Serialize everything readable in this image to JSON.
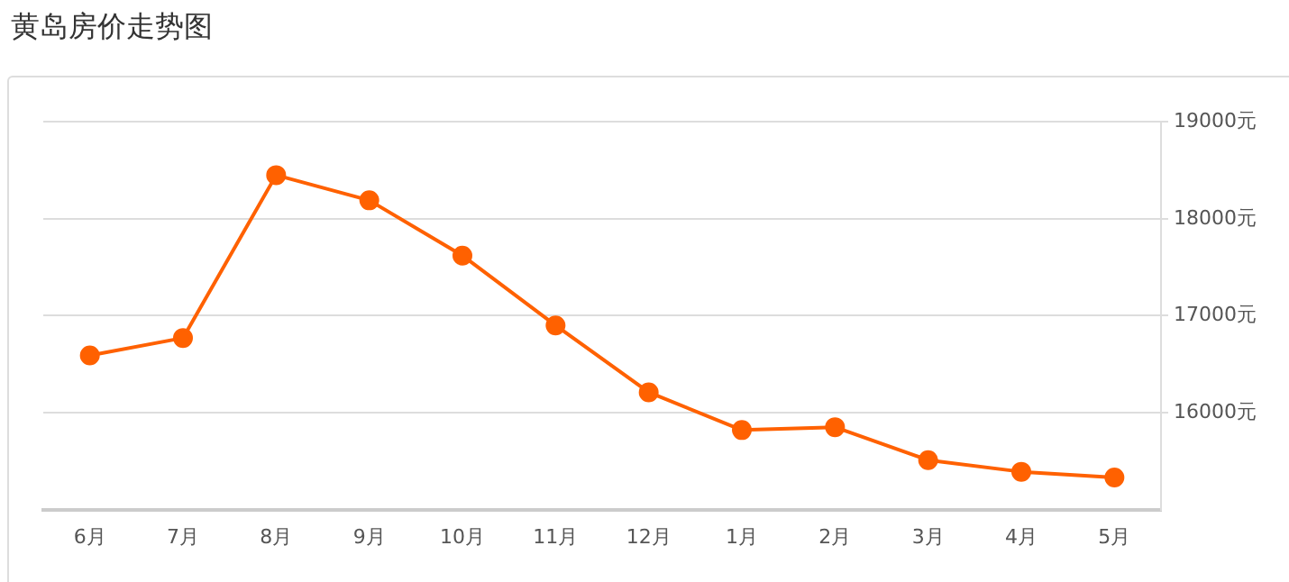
{
  "chart_data": {
    "type": "line",
    "title": "黄岛房价走势图",
    "categories": [
      "6月",
      "7月",
      "8月",
      "9月",
      "10月",
      "11月",
      "12月",
      "1月",
      "2月",
      "3月",
      "4月",
      "5月"
    ],
    "series": [
      {
        "color": "#ff6100",
        "values": [
          16590,
          16770,
          18450,
          18190,
          17620,
          16900,
          16210,
          15820,
          15850,
          15510,
          15390,
          15330
        ]
      }
    ],
    "ylim": [
      15000,
      19000
    ],
    "yticks": [
      {
        "value": 16000,
        "label": "16000元"
      },
      {
        "value": 17000,
        "label": "17000元"
      },
      {
        "value": 18000,
        "label": "18000元"
      },
      {
        "value": 19000,
        "label": "19000元"
      }
    ],
    "grid": "y",
    "legend": false,
    "marker": "circle",
    "line_style": "solid"
  }
}
